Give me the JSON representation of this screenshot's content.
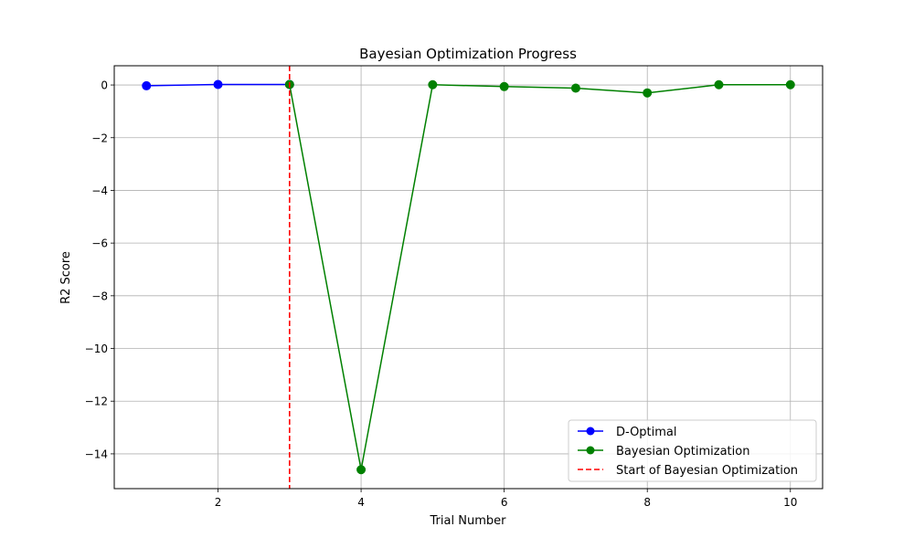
{
  "chart_data": {
    "type": "line",
    "title": "Bayesian Optimization Progress",
    "xlabel": "Trial Number",
    "ylabel": "R2 Score",
    "xlim": [
      0.55,
      10.45
    ],
    "ylim": [
      -15.32,
      0.73
    ],
    "xticks": [
      2,
      4,
      6,
      8,
      10
    ],
    "xtick_labels": [
      "2",
      "4",
      "6",
      "8",
      "10"
    ],
    "yticks": [
      0,
      -2,
      -4,
      -6,
      -8,
      -10,
      -12,
      -14
    ],
    "ytick_labels": [
      "0",
      "−2",
      "−4",
      "−6",
      "−8",
      "−10",
      "−12",
      "−14"
    ],
    "grid": true,
    "legend_position": "lower-right",
    "series": [
      {
        "name": "D-Optimal",
        "color": "#0000ff",
        "marker": "circle",
        "x": [
          1,
          2,
          3
        ],
        "y": [
          -0.03,
          0.02,
          0.02
        ]
      },
      {
        "name": "Bayesian Optimization",
        "color": "#008000",
        "marker": "circle",
        "x": [
          3,
          4,
          5,
          6,
          7,
          8,
          9,
          10
        ],
        "y": [
          0.02,
          -14.6,
          0.01,
          -0.06,
          -0.12,
          -0.3,
          0.01,
          0.01
        ]
      }
    ],
    "vlines": [
      {
        "name": "Start of Bayesian Optimization",
        "x": 3,
        "color": "#ff0000",
        "style": "dashed"
      }
    ]
  }
}
